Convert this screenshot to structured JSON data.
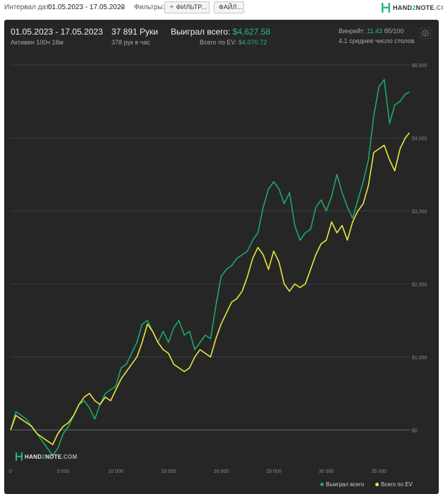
{
  "toolbar": {
    "interval_label": "Интервал дат:",
    "interval_value": "01.05.2023 - 17.05.2023",
    "filters_label": "Фильтры:",
    "filter_button": "ФИЛЬТР...",
    "file_button": "ФАЙЛ..."
  },
  "logo": {
    "part1": "HAND",
    "part2": "2",
    "part3": "NOTE",
    "part4": ".COM"
  },
  "summary": {
    "date_range": "01.05.2023 - 17.05.2023",
    "active": "Активен 100ч 18м",
    "hands": "37 891 Руки",
    "hands_per_hour": "378 рук в час",
    "won_label": "Выиграл всего:",
    "won_value": "$4,627.58",
    "ev_label": "Всего по EV:",
    "ev_value": "$4,070.72",
    "winrate_label": "Винрейт:",
    "winrate_value": "11.43",
    "winrate_unit": "бб/100",
    "tables_text": "4.1 среднее число столов"
  },
  "colors": {
    "won": "#1fa866",
    "ev": "#e8e83a",
    "accent": "#2eb87a",
    "panel": "#262626"
  },
  "chart_data": {
    "type": "line",
    "x_ticks": [
      0,
      5000,
      10000,
      15000,
      20000,
      25000,
      30000,
      35000
    ],
    "x_tick_labels": [
      "0",
      "5 000",
      "10 000",
      "15 000",
      "20 000",
      "25 000",
      "30 000",
      "35 000"
    ],
    "y_ticks": [
      0,
      1000,
      2000,
      3000,
      4000,
      5000
    ],
    "y_tick_labels": [
      "$0",
      "$1,000",
      "$2,000",
      "$3,000",
      "$4,000",
      "$5,000"
    ],
    "xlim": [
      0,
      38000
    ],
    "ylim": [
      -500,
      5000
    ],
    "grid": true,
    "legend_position": "bottom-right",
    "series": [
      {
        "name": "Выиграл всего",
        "color": "#1fa866",
        "x": [
          0,
          500,
          1000,
          1500,
          2000,
          2500,
          3000,
          3500,
          4000,
          4500,
          5000,
          5500,
          6000,
          6500,
          7000,
          7500,
          8000,
          8500,
          9000,
          9500,
          10000,
          10500,
          11000,
          11500,
          12000,
          12500,
          13000,
          13500,
          14000,
          14500,
          15000,
          15500,
          16000,
          16500,
          17000,
          17500,
          18000,
          18500,
          19000,
          19500,
          20000,
          20500,
          21000,
          21500,
          22000,
          22500,
          23000,
          23500,
          24000,
          24500,
          25000,
          25500,
          26000,
          26500,
          27000,
          27500,
          28000,
          28500,
          29000,
          29500,
          30000,
          30500,
          31000,
          31500,
          32000,
          32500,
          33000,
          33500,
          34000,
          34500,
          35000,
          35500,
          36000,
          36500,
          37000,
          37500,
          37891
        ],
        "values": [
          0,
          250,
          200,
          150,
          50,
          -50,
          -150,
          -250,
          -350,
          -250,
          -50,
          50,
          200,
          350,
          400,
          300,
          150,
          350,
          500,
          550,
          600,
          850,
          900,
          1050,
          1200,
          1450,
          1500,
          1350,
          1200,
          1350,
          1200,
          1400,
          1500,
          1300,
          1350,
          1100,
          1200,
          1300,
          1250,
          1700,
          2100,
          2200,
          2250,
          2350,
          2400,
          2450,
          2600,
          2700,
          3050,
          3300,
          3400,
          3300,
          3100,
          3250,
          2800,
          2600,
          2700,
          2750,
          3050,
          3150,
          3000,
          3200,
          3500,
          3250,
          3050,
          2900,
          3150,
          3400,
          3700,
          4300,
          4700,
          4800,
          4200,
          4450,
          4500,
          4600,
          4627.58
        ]
      },
      {
        "name": "Всего по EV",
        "color": "#e8e83a",
        "x": [
          0,
          500,
          1000,
          1500,
          2000,
          2500,
          3000,
          3500,
          4000,
          4500,
          5000,
          5500,
          6000,
          6500,
          7000,
          7500,
          8000,
          8500,
          9000,
          9500,
          10000,
          10500,
          11000,
          11500,
          12000,
          12500,
          13000,
          13500,
          14000,
          14500,
          15000,
          15500,
          16000,
          16500,
          17000,
          17500,
          18000,
          18500,
          19000,
          19500,
          20000,
          20500,
          21000,
          21500,
          22000,
          22500,
          23000,
          23500,
          24000,
          24500,
          25000,
          25500,
          26000,
          26500,
          27000,
          27500,
          28000,
          28500,
          29000,
          29500,
          30000,
          30500,
          31000,
          31500,
          32000,
          32500,
          33000,
          33500,
          34000,
          34500,
          35000,
          35500,
          36000,
          36500,
          37000,
          37500,
          37891
        ],
        "values": [
          0,
          200,
          150,
          100,
          50,
          -50,
          -100,
          -150,
          -200,
          -50,
          50,
          100,
          200,
          350,
          450,
          500,
          400,
          350,
          450,
          400,
          550,
          700,
          800,
          900,
          1000,
          1200,
          1450,
          1350,
          1200,
          1100,
          1050,
          900,
          850,
          800,
          850,
          1000,
          1100,
          1050,
          1000,
          1250,
          1450,
          1600,
          1750,
          1800,
          1900,
          2100,
          2350,
          2500,
          2400,
          2200,
          2450,
          2300,
          2000,
          1900,
          2000,
          1950,
          2000,
          2200,
          2400,
          2550,
          2600,
          2850,
          2700,
          2800,
          2600,
          2850,
          3000,
          3100,
          3350,
          3800,
          3850,
          3900,
          3700,
          3550,
          3850,
          4000,
          4070.72
        ]
      }
    ]
  },
  "watermark": {
    "part1": "HAND",
    "part2": "2",
    "part3": "NOTE",
    "part4": ".COM"
  }
}
